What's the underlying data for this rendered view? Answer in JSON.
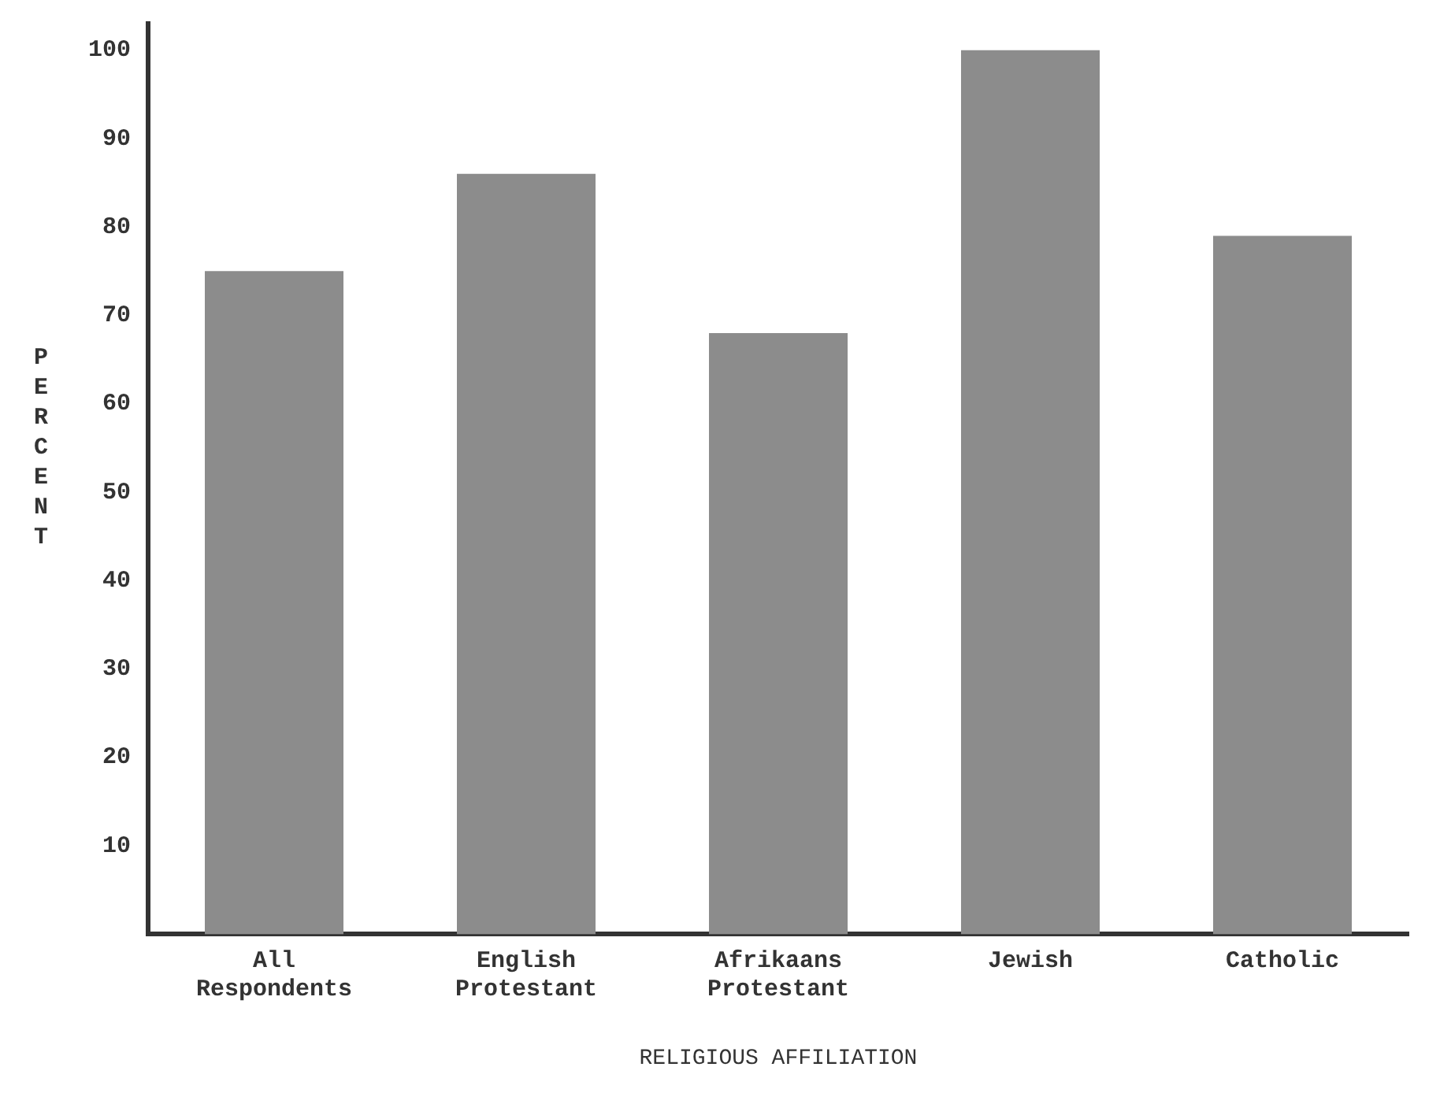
{
  "chart_data": {
    "type": "bar",
    "xlabel": "RELIGIOUS AFFILIATION",
    "ylabel": "PERCENT",
    "categories": [
      "All Respondents",
      "English Protestant",
      "Afrikaans Protestant",
      "Jewish",
      "Catholic"
    ],
    "values": [
      75,
      86,
      68,
      100,
      79
    ],
    "color": "#8c8c8c",
    "ylim": [
      0,
      103
    ],
    "yticks": [
      10,
      20,
      30,
      40,
      50,
      60,
      70,
      80,
      90,
      100
    ],
    "grid": false,
    "legend": false
  }
}
